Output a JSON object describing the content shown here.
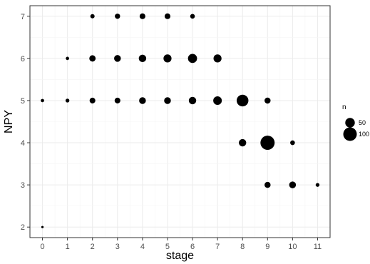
{
  "chart_data": {
    "type": "scatter",
    "xlabel": "stage",
    "ylabel": "NPY",
    "xlim": [
      -0.5,
      11.5
    ],
    "ylim": [
      1.75,
      7.25
    ],
    "x_ticks": [
      0,
      1,
      2,
      3,
      4,
      5,
      6,
      7,
      8,
      9,
      10,
      11
    ],
    "y_ticks": [
      2,
      3,
      4,
      5,
      6,
      7
    ],
    "grid": true,
    "legend": {
      "title": "n",
      "position": "right",
      "entries": [
        {
          "label": "50",
          "value": 50
        },
        {
          "label": "100",
          "value": 100
        }
      ]
    },
    "colors": {
      "point": "#000000",
      "panel_border": "#333333",
      "grid_major": "#ebebeb",
      "grid_minor": "#f5f5f5"
    },
    "points": [
      {
        "x": 0,
        "y": 2,
        "n": 3
      },
      {
        "x": 0,
        "y": 5,
        "n": 6
      },
      {
        "x": 1,
        "y": 5,
        "n": 8
      },
      {
        "x": 1,
        "y": 6,
        "n": 6
      },
      {
        "x": 2,
        "y": 5,
        "n": 18
      },
      {
        "x": 2,
        "y": 6,
        "n": 22
      },
      {
        "x": 2,
        "y": 7,
        "n": 10
      },
      {
        "x": 3,
        "y": 5,
        "n": 18
      },
      {
        "x": 3,
        "y": 6,
        "n": 25
      },
      {
        "x": 3,
        "y": 7,
        "n": 15
      },
      {
        "x": 4,
        "y": 5,
        "n": 25
      },
      {
        "x": 4,
        "y": 6,
        "n": 30
      },
      {
        "x": 4,
        "y": 7,
        "n": 18
      },
      {
        "x": 5,
        "y": 5,
        "n": 25
      },
      {
        "x": 5,
        "y": 6,
        "n": 35
      },
      {
        "x": 5,
        "y": 7,
        "n": 18
      },
      {
        "x": 6,
        "y": 5,
        "n": 30
      },
      {
        "x": 6,
        "y": 6,
        "n": 45
      },
      {
        "x": 6,
        "y": 7,
        "n": 12
      },
      {
        "x": 7,
        "y": 5,
        "n": 40
      },
      {
        "x": 7,
        "y": 6,
        "n": 35
      },
      {
        "x": 8,
        "y": 4,
        "n": 30
      },
      {
        "x": 8,
        "y": 5,
        "n": 75
      },
      {
        "x": 9,
        "y": 3,
        "n": 20
      },
      {
        "x": 9,
        "y": 4,
        "n": 110
      },
      {
        "x": 9,
        "y": 5,
        "n": 20
      },
      {
        "x": 10,
        "y": 3,
        "n": 25
      },
      {
        "x": 10,
        "y": 4,
        "n": 12
      },
      {
        "x": 11,
        "y": 3,
        "n": 8
      }
    ]
  }
}
